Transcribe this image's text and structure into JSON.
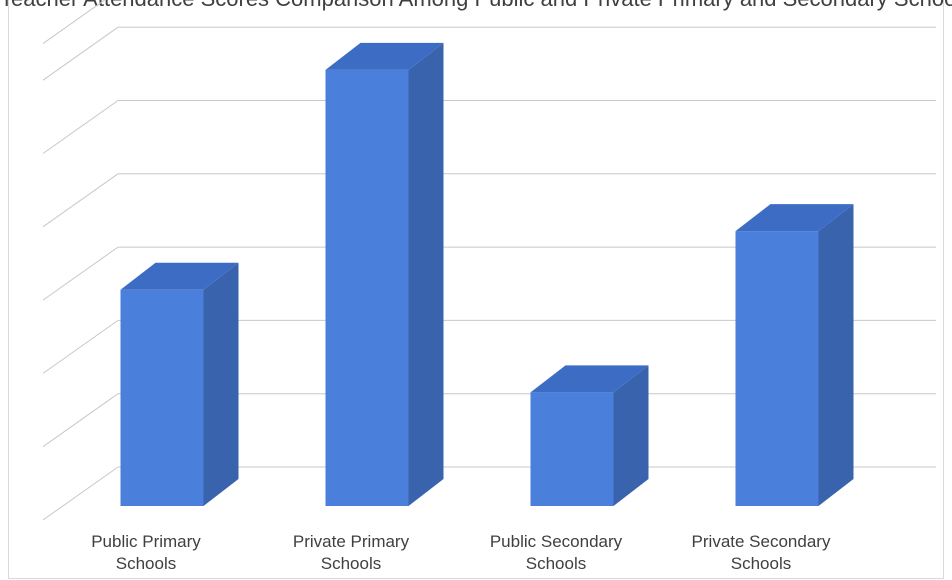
{
  "chart_data": {
    "type": "bar",
    "title": "Teacher Attendance Scores Comparison Among Public and Private Primary and Secondary Schools",
    "categories": [
      [
        "Public Primary",
        "Schools"
      ],
      [
        "Private Primary",
        "Schools"
      ],
      [
        "Public Secondary",
        "Schools"
      ],
      [
        "Private Secondary",
        "Schools"
      ]
    ],
    "values": [
      2.95,
      5.95,
      1.55,
      3.75
    ],
    "ylim": [
      0,
      6.5
    ],
    "grid": true,
    "colors": {
      "bar_front": "#4a7fdc",
      "bar_side": "#3a63ad",
      "bar_top": "#3d6cc4",
      "grid": "#c8c8c8"
    }
  }
}
